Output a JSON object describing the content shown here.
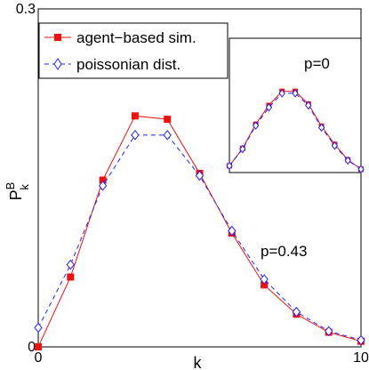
{
  "chart_data": [
    {
      "type": "line",
      "xlabel": "k",
      "ylabel": "P",
      "ylabel_superscript": "B",
      "ylabel_subscript": "k",
      "xlim": [
        0,
        10
      ],
      "ylim": [
        0,
        0.3
      ],
      "xticks": [
        "0",
        "10"
      ],
      "yticks": [
        "0",
        "0.3"
      ],
      "grid": false,
      "legend_position": "top-left",
      "annotation": "p=0.43",
      "x": [
        0,
        1,
        2,
        3,
        4,
        5,
        6,
        7,
        8,
        9,
        10
      ],
      "series": [
        {
          "name": "agent−based sim.",
          "color": "#ee1111",
          "line": "solid",
          "marker": "square",
          "values": [
            0.0,
            0.062,
            0.148,
            0.205,
            0.202,
            0.154,
            0.101,
            0.055,
            0.029,
            0.013,
            0.005
          ]
        },
        {
          "name": "poissonian dist.",
          "color": "#2222ee",
          "line": "dashed",
          "marker": "diamond",
          "values": [
            0.017,
            0.073,
            0.143,
            0.188,
            0.188,
            0.152,
            0.103,
            0.06,
            0.031,
            0.014,
            0.006
          ]
        }
      ]
    },
    {
      "type": "line",
      "annotation": "p=0",
      "xlim": [
        0,
        10
      ],
      "ylim": [
        0,
        0.2
      ],
      "x": [
        0,
        1,
        2,
        3,
        4,
        5,
        6,
        7,
        8,
        9,
        10
      ],
      "series": [
        {
          "color": "#ee1111",
          "line": "solid",
          "marker": "square",
          "values": [
            0.01,
            0.036,
            0.072,
            0.1,
            0.121,
            0.121,
            0.102,
            0.069,
            0.042,
            0.019,
            0.005
          ]
        },
        {
          "color": "#2222ee",
          "line": "dashed",
          "marker": "diamond",
          "values": [
            0.01,
            0.035,
            0.07,
            0.097,
            0.118,
            0.118,
            0.1,
            0.067,
            0.04,
            0.018,
            0.005
          ]
        }
      ]
    }
  ]
}
